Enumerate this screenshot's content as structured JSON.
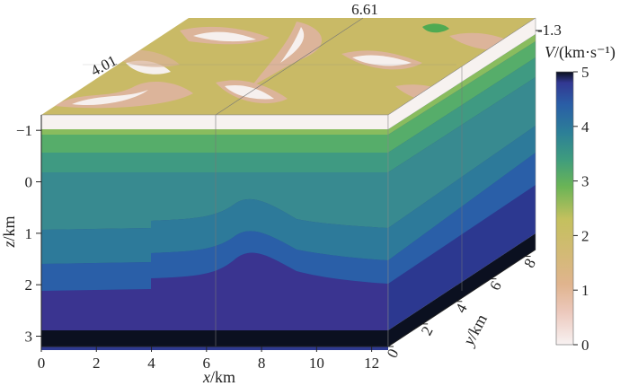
{
  "chart_data": {
    "type": "3d-velocity-model-block",
    "top_annotations": [
      "4.01",
      "6.61",
      "-1.3"
    ],
    "x_axis": {
      "var": "x",
      "unit": "/km",
      "ticks": [
        0,
        2,
        4,
        6,
        8,
        10,
        12
      ],
      "range": [
        0,
        12.6
      ]
    },
    "y_axis": {
      "var": "y",
      "unit": "/km",
      "ticks": [
        0,
        2,
        4,
        6,
        8
      ],
      "range": [
        0,
        8.6
      ]
    },
    "z_axis": {
      "var": "z",
      "unit": "/km",
      "ticks": [
        -1,
        0,
        1,
        2,
        3
      ],
      "range": [
        -1.3,
        3.2
      ]
    },
    "colorbar": {
      "label_var": "V",
      "label_unit": "/(km·s⁻¹)",
      "ticks": [
        0,
        1,
        2,
        3,
        4,
        5
      ],
      "range": [
        0,
        5
      ],
      "colors": [
        "#f8f2f2",
        "#e8b8a8",
        "#d4b878",
        "#c6c060",
        "#62b056",
        "#3a9a80",
        "#2a7c98",
        "#2a5ea6",
        "#333894",
        "#0a0f1c"
      ]
    },
    "layers_front_face": [
      {
        "z_top": -1.3,
        "z_bottom": -1.2,
        "velocity": 0.2
      },
      {
        "z_top": -1.2,
        "z_bottom": -0.9,
        "velocity": 2.8
      },
      {
        "z_top": -0.9,
        "z_bottom": -0.4,
        "velocity": 3.3
      },
      {
        "z_top": -0.4,
        "z_bottom": 0.8,
        "velocity": 3.8
      },
      {
        "z_top": 0.8,
        "z_bottom": 1.5,
        "velocity": 4.1
      },
      {
        "z_top": 1.5,
        "z_bottom": 2.0,
        "velocity": 4.4
      },
      {
        "z_top": 2.0,
        "z_bottom": 2.9,
        "velocity": 4.7
      },
      {
        "z_top": 2.9,
        "z_bottom": 3.2,
        "velocity": 5.0
      }
    ],
    "anticline": {
      "axis_x": 8.2,
      "amplitude_km": 0.75,
      "half_width_km": 1.5
    },
    "step_fault": {
      "x": 4.2,
      "throw_km": 0.15
    },
    "section_lines_x": [
      6.61
    ]
  }
}
